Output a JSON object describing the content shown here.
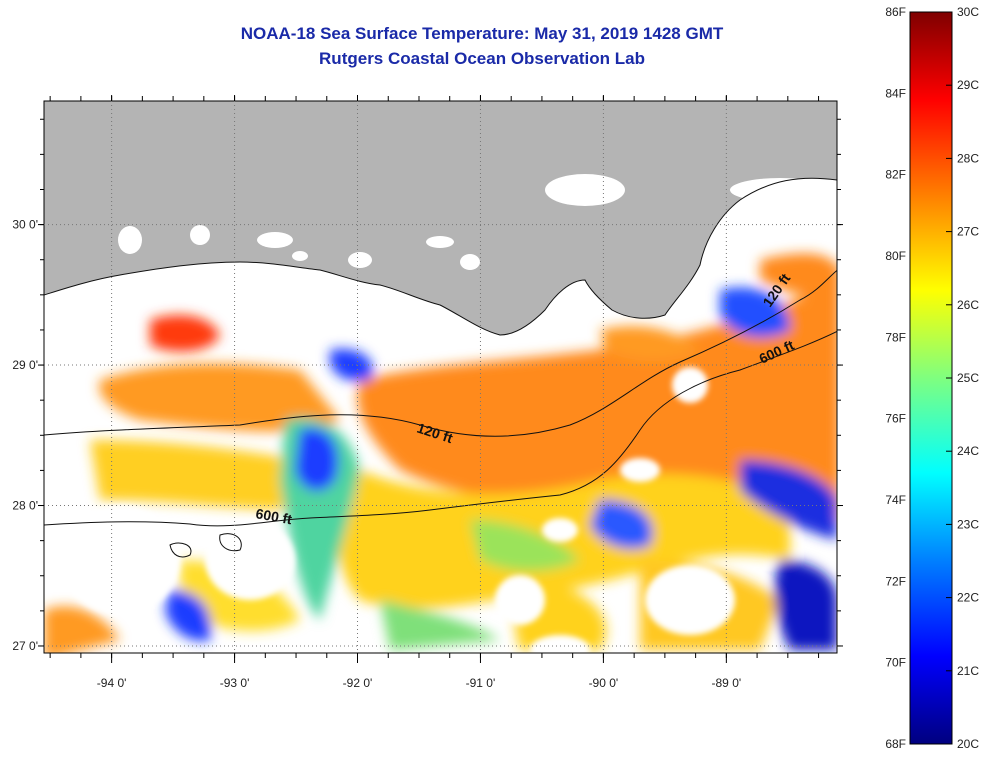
{
  "header": {
    "title": "NOAA-18 Sea Surface Temperature:  May 31, 2019 1428 GMT",
    "subtitle": "Rutgers Coastal Ocean Observation Lab"
  },
  "map": {
    "lon_range": [
      -94.55,
      -88.1
    ],
    "lat_range": [
      26.95,
      30.88
    ],
    "lon_ticks": [
      {
        "value": -94,
        "label": "-94 0'"
      },
      {
        "value": -93,
        "label": "-93 0'"
      },
      {
        "value": -92,
        "label": "-92 0'"
      },
      {
        "value": -91,
        "label": "-91 0'"
      },
      {
        "value": -90,
        "label": "-90 0'"
      },
      {
        "value": -89,
        "label": "-89 0'"
      }
    ],
    "lat_ticks": [
      {
        "value": 30,
        "label": "30 0'"
      },
      {
        "value": 29,
        "label": "29 0'"
      },
      {
        "value": 28,
        "label": "28 0'"
      },
      {
        "value": 27,
        "label": "27 0'"
      }
    ],
    "contours": [
      {
        "label": "120 ft"
      },
      {
        "label": "600 ft"
      },
      {
        "label": "120 ft"
      },
      {
        "label": "600 ft"
      }
    ]
  },
  "colorbar": {
    "fahrenheit_labels": [
      "86F",
      "84F",
      "82F",
      "80F",
      "78F",
      "76F",
      "74F",
      "72F",
      "70F",
      "68F"
    ],
    "celsius_labels": [
      "30C",
      "29C",
      "28C",
      "27C",
      "26C",
      "25C",
      "24C",
      "23C",
      "22C",
      "21C",
      "20C"
    ],
    "colors": [
      "#00007f",
      "#0000ff",
      "#007fff",
      "#00ffff",
      "#7fff7f",
      "#ffff00",
      "#ff7f00",
      "#ff0000",
      "#7f0000"
    ]
  },
  "colors": {
    "land": "#b4b4b4",
    "cloud": "#ffffff",
    "title": "#1a2aa8"
  }
}
